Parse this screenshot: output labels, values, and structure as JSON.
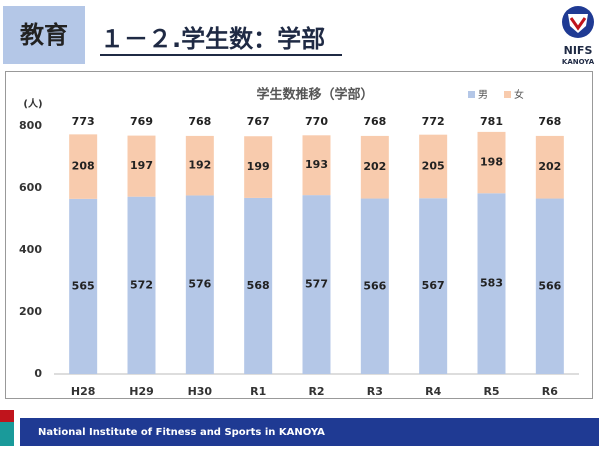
{
  "header": {
    "section": "教育",
    "title": "１－２.学生数：学部",
    "logo_top": "NIFS",
    "logo_bottom": "KANOYA"
  },
  "footer": {
    "text": "National Institute of Fitness and Sports in KANOYA"
  },
  "chart_data": {
    "type": "stacked-bar",
    "title": "学生数推移（学部）",
    "y_label": "(人)",
    "categories": [
      "H28",
      "H29",
      "H30",
      "R1",
      "R2",
      "R3",
      "R4",
      "R5",
      "R6"
    ],
    "series": [
      {
        "name": "男",
        "color": "#b4c7e7",
        "values": [
          565,
          572,
          576,
          568,
          577,
          566,
          567,
          583,
          566
        ]
      },
      {
        "name": "女",
        "color": "#f8cbad",
        "values": [
          208,
          197,
          192,
          199,
          193,
          202,
          205,
          198,
          202
        ]
      }
    ],
    "totals": [
      773,
      769,
      768,
      767,
      770,
      768,
      772,
      781,
      768
    ],
    "ylim": [
      0,
      800
    ],
    "yticks": [
      0,
      200,
      400,
      600,
      800
    ],
    "grid": false,
    "legend": "top-right"
  }
}
